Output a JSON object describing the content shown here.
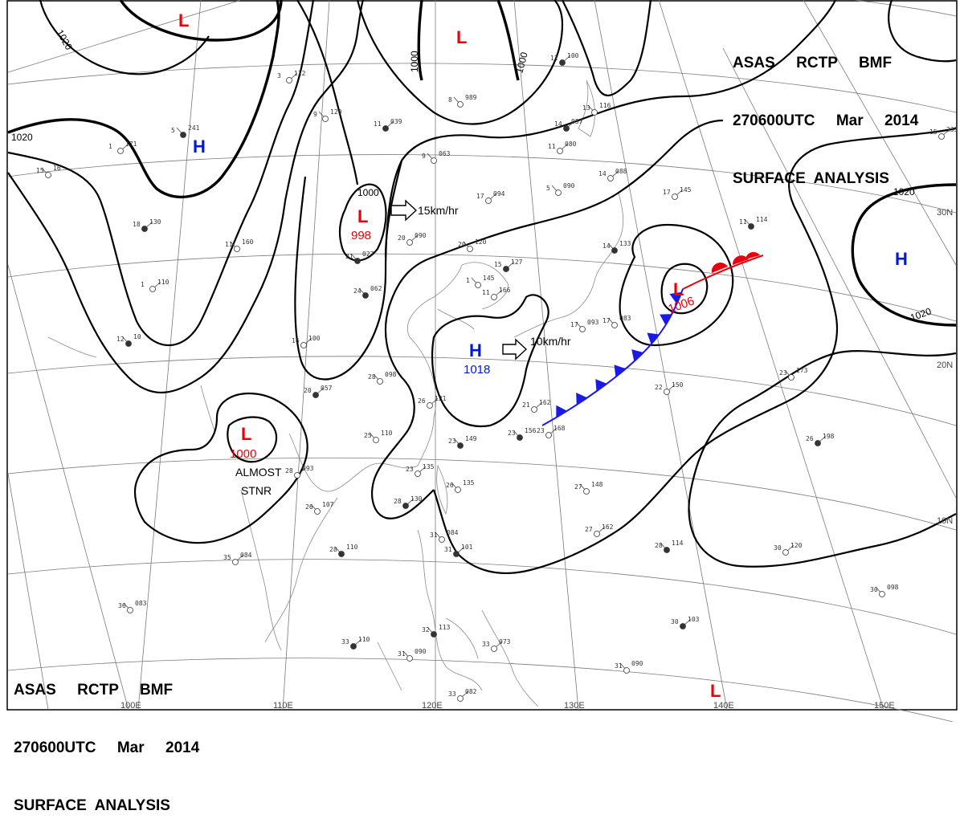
{
  "header": {
    "line1": "ASAS     RCTP     BMF",
    "line2": "270600UTC     Mar     2014",
    "line3": "SURFACE  ANALYSIS"
  },
  "colors": {
    "low": "#e8000b",
    "high": "#0019d6",
    "cold_front": "#1a1ae6",
    "warm_front": "#e8000b"
  },
  "isobar_labels": [
    "1020",
    "1020",
    "1000",
    "1000",
    "1000",
    "1020",
    "1020"
  ],
  "longitude_labels": [
    "100E",
    "110E",
    "120E",
    "130E",
    "140E",
    "150E"
  ],
  "latitude_labels": [
    "30N",
    "20N",
    "10N"
  ],
  "systems": [
    {
      "type": "L",
      "value": "998"
    },
    {
      "type": "L",
      "value": "1000"
    },
    {
      "type": "L",
      "value": "1006"
    },
    {
      "type": "H",
      "value": "1018"
    },
    {
      "type": "H",
      "value": ""
    },
    {
      "type": "H",
      "value": ""
    },
    {
      "type": "L",
      "value": ""
    },
    {
      "type": "L",
      "value": ""
    },
    {
      "type": "L",
      "value": ""
    }
  ],
  "motions": [
    "15km/hr",
    "10km/hr"
  ],
  "annotations": [
    "ALMOST",
    "STNR"
  ],
  "stations": [
    [
      "5",
      "241"
    ],
    [
      "1",
      "171"
    ],
    [
      "15",
      "16"
    ],
    [
      "18",
      "130"
    ],
    [
      "11",
      "160"
    ],
    [
      "1",
      "110"
    ],
    [
      "12",
      "10"
    ],
    [
      "3",
      "122"
    ],
    [
      "9",
      "120"
    ],
    [
      "11",
      "039"
    ],
    [
      "9",
      "063"
    ],
    [
      "17",
      "094"
    ],
    [
      "21",
      "027"
    ],
    [
      "20",
      "090"
    ],
    [
      "20",
      "120"
    ],
    [
      "15",
      "127"
    ],
    [
      "1",
      "145"
    ],
    [
      "11",
      "166"
    ],
    [
      "24",
      "062"
    ],
    [
      "16",
      "100"
    ],
    [
      "28",
      "098"
    ],
    [
      "20",
      "057"
    ],
    [
      "25",
      "110"
    ],
    [
      "26",
      "121"
    ],
    [
      "23",
      "149"
    ],
    [
      "23",
      "135"
    ],
    [
      "26",
      "135"
    ],
    [
      "28",
      "130"
    ],
    [
      "26",
      "107"
    ],
    [
      "28",
      "093"
    ],
    [
      "28",
      "110"
    ],
    [
      "35",
      "084"
    ],
    [
      "36",
      "083"
    ],
    [
      "33",
      "110"
    ],
    [
      "31",
      "090"
    ],
    [
      "33",
      "082"
    ],
    [
      "32",
      "113"
    ],
    [
      "33",
      "073"
    ],
    [
      "31",
      "084"
    ],
    [
      "31",
      "101"
    ],
    [
      "5",
      "090"
    ],
    [
      "11",
      "080"
    ],
    [
      "14",
      "133"
    ],
    [
      "14",
      "088"
    ],
    [
      "17",
      "083"
    ],
    [
      "14",
      "057"
    ],
    [
      "8",
      "989"
    ],
    [
      "15",
      "233"
    ],
    [
      "11",
      "114"
    ],
    [
      "22",
      "150"
    ],
    [
      "23",
      "173"
    ],
    [
      "26",
      "198"
    ],
    [
      "27",
      "148"
    ],
    [
      "27",
      "162"
    ],
    [
      "28",
      "114"
    ],
    [
      "30",
      "120"
    ],
    [
      "30",
      "098"
    ],
    [
      "30",
      "103"
    ],
    [
      "31",
      "090"
    ],
    [
      "21",
      "162"
    ],
    [
      "23",
      "156"
    ],
    [
      "23",
      "168"
    ],
    [
      "17",
      "093"
    ],
    [
      "11",
      "100"
    ],
    [
      "13",
      "116"
    ],
    [
      "17",
      "145"
    ]
  ]
}
